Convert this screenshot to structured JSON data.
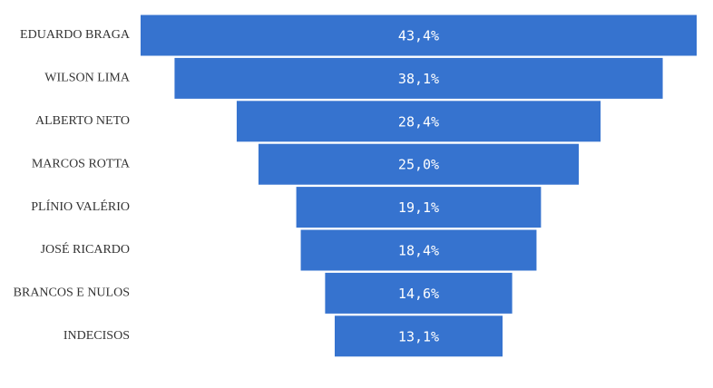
{
  "chart_data": {
    "type": "funnel",
    "categories": [
      "EDUARDO BRAGA",
      "WILSON LIMA",
      "ALBERTO NETO",
      "MARCOS ROTTA",
      "PLÍNIO VALÉRIO",
      "JOSÉ RICARDO",
      "BRANCOS E NULOS",
      "INDECISOS"
    ],
    "values": [
      43.4,
      38.1,
      28.4,
      25.0,
      19.1,
      18.4,
      14.6,
      13.1
    ],
    "value_labels": [
      "43,4%",
      "38,1%",
      "28,4%",
      "25,0%",
      "19,1%",
      "18,4%",
      "14,6%",
      "13,1%"
    ],
    "color": "#3673cf"
  }
}
